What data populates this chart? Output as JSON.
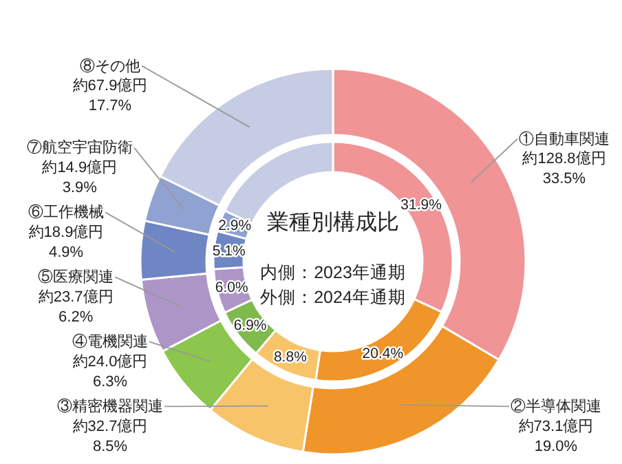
{
  "chart_data": {
    "type": "donut",
    "title": "業種別構成比",
    "categories": [
      "①自動車関連",
      "②半導体関連",
      "③精密機器関連",
      "④電機関連",
      "⑤医療関連",
      "⑥工作機械",
      "⑦航空宇宙防衛",
      "⑧その他"
    ],
    "series": [
      {
        "colors": [
          "#f09496",
          "#f0952a",
          "#f7c46a",
          "#8cc64c",
          "#ae95c8",
          "#6e86c3",
          "#8fa2d1",
          "#c6cce3"
        ],
        "values": [
          33.5,
          19.0,
          8.5,
          6.3,
          6.2,
          4.9,
          3.9,
          17.7
        ],
        "value_labels": [
          "約128.8億円\n33.5%",
          "約73.1億円\n19.0%",
          "約32.7億円\n8.5%",
          "約24.0億円\n6.3%",
          "約23.7億円\n6.2%",
          "約18.9億円\n4.9%",
          "約14.9億円\n3.9%",
          "約67.9億円\n17.7%"
        ]
      },
      {
        "colors": [
          "#f09496",
          "#f0952a",
          "#f7c46a",
          "#7fba4c",
          "#ae95c8",
          "#6e86c3",
          "#8fa2d1",
          "#c6cce3"
        ],
        "values": [
          31.9,
          20.4,
          8.8,
          6.9,
          6.0,
          5.1,
          2.9,
          18.0
        ],
        "value_labels": [
          "31.9%",
          "20.4%",
          "8.8%",
          "6.9%",
          "6.0%",
          "5.1%",
          "2.9%",
          null
        ]
      }
    ],
    "annotations": [
      "内側：2023年通期",
      "外側：2024年通期"
    ]
  }
}
